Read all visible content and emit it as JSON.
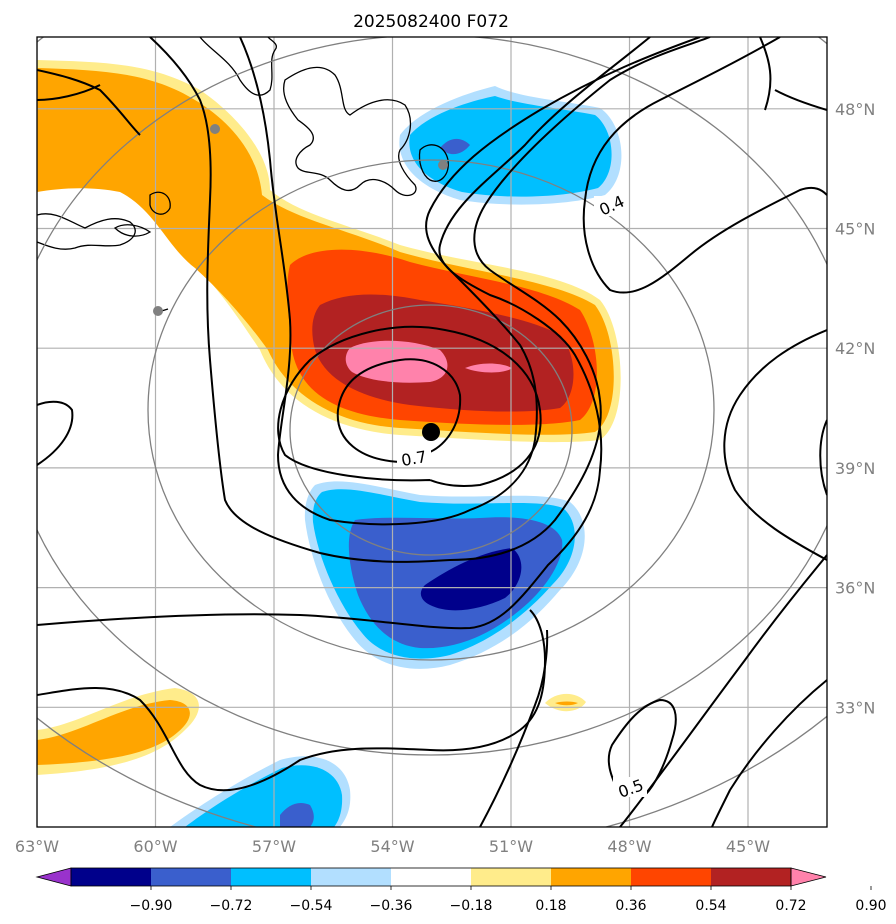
{
  "chart_data": {
    "type": "map-contour",
    "title": "2025082400 F072",
    "x_ticks": [
      "63°W",
      "60°W",
      "57°W",
      "54°W",
      "51°W",
      "48°W",
      "45°W"
    ],
    "x_values": [
      -63,
      -60,
      -57,
      -54,
      -51,
      -48,
      -45
    ],
    "y_ticks": [
      "48°N",
      "45°N",
      "42°N",
      "39°N",
      "36°N",
      "33°N"
    ],
    "y_values": [
      48,
      45,
      42,
      39,
      36,
      33
    ],
    "xlim": [
      -63,
      -43
    ],
    "ylim": [
      30,
      49.8
    ],
    "center": {
      "lon": -53,
      "lat": 40.9
    },
    "colorbar": {
      "tick_labels": [
        "−0.90",
        "−0.72",
        "−0.54",
        "−0.36",
        "−0.18",
        "0.18",
        "0.36",
        "0.54",
        "0.72",
        "0.90"
      ],
      "levels": [
        -0.9,
        -0.72,
        -0.54,
        -0.36,
        -0.18,
        0.18,
        0.36,
        0.54,
        0.72,
        0.9
      ],
      "colors": [
        "#9932cc",
        "#00008b",
        "#3a5fcd",
        "#00bfff",
        "#b2dfff",
        "#ffffff",
        "#ffec8b",
        "#ffa500",
        "#ff4500",
        "#b22222",
        "#ff82ab"
      ]
    },
    "contour_labels": [
      "0.4",
      "0.7",
      "0.5"
    ],
    "contour_levels": [
      0.4,
      0.5,
      0.6,
      0.7
    ]
  },
  "colors": {
    "pink": "#ff82ab",
    "darkred": "#b22222",
    "orangered": "#ff4500",
    "orange": "#ffa500",
    "yellow": "#ffec8b",
    "lightblue": "#b2dfff",
    "deepsky": "#00bfff",
    "blue": "#3a5fcd",
    "navy": "#00008b",
    "grid": "#b0b0b0",
    "ring": "#808080"
  }
}
